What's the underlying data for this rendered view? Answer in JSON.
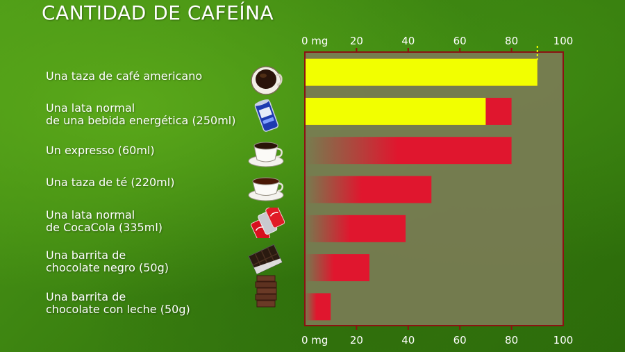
{
  "title": "CANTIDAD DE CAFEÍNA",
  "colors": {
    "bar_red": "#e0162e",
    "bar_yellow": "#f2ff00",
    "plot_bg": "#7a7c55",
    "frame": "#8b1212"
  },
  "chart_data": {
    "type": "bar",
    "orientation": "horizontal",
    "title": "CANTIDAD DE CAFEÍNA",
    "xlim": [
      0,
      100
    ],
    "x_ticks": [
      "0 mg",
      "20",
      "40",
      "60",
      "80",
      "100"
    ],
    "categories": [
      "Una taza de café americano",
      "Una lata normal\nde una bebida energética (250ml)",
      "Un expresso (60ml)",
      "Una taza de té (220ml)",
      "Una lata normal\nde CocaCola (335ml)",
      "Una barrita de\nchocolate negro (50g)",
      "Una barrita de\nchocolate con leche (50g)"
    ],
    "values": [
      90,
      80,
      80,
      49,
      39,
      25,
      10
    ],
    "highlight_values": [
      90,
      70,
      null,
      null,
      null,
      null,
      null
    ],
    "icons": [
      "coffee-cup-icon",
      "energy-drink-can-icon",
      "espresso-cup-icon",
      "tea-cup-icon",
      "cola-cans-icon",
      "dark-chocolate-icon",
      "milk-chocolate-icon"
    ],
    "grid": false
  }
}
